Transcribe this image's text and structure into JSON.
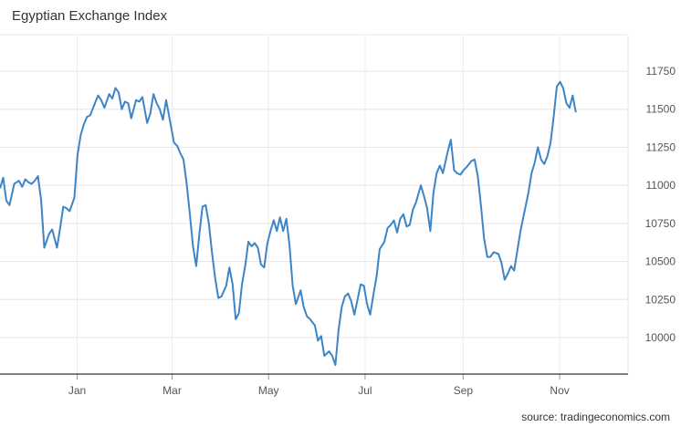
{
  "chart_data": {
    "type": "line",
    "title": "Egyptian Exchange Index",
    "source": "source: tradingeconomics.com",
    "xlabel": "",
    "ylabel": "",
    "ylim": [
      9760,
      11990
    ],
    "yticks": [
      10000,
      10250,
      10500,
      10750,
      11000,
      11250,
      11500,
      11750
    ],
    "x_ticks": [
      {
        "label": "Jan",
        "date": "2016-01-01"
      },
      {
        "label": "Mar",
        "date": "2016-03-01"
      },
      {
        "label": "May",
        "date": "2016-05-01"
      },
      {
        "label": "Jul",
        "date": "2016-07-01"
      },
      {
        "label": "Sep",
        "date": "2016-09-01"
      },
      {
        "label": "Nov",
        "date": "2016-11-01"
      }
    ],
    "xlim": [
      "2015-11-19",
      "2016-12-20"
    ],
    "grid": true,
    "line_color": "#3d85c6",
    "series": [
      {
        "name": "",
        "dates": [
          "2015-11-19",
          "2015-11-21",
          "2015-11-23",
          "2015-11-25",
          "2015-11-28",
          "2015-12-01",
          "2015-12-03",
          "2015-12-05",
          "2015-12-07",
          "2015-12-09",
          "2015-12-11",
          "2015-12-13",
          "2015-12-15",
          "2015-12-17",
          "2015-12-20",
          "2015-12-22",
          "2015-12-25",
          "2015-12-27",
          "2015-12-29",
          "2015-12-31",
          "2016-01-02",
          "2016-01-05",
          "2016-01-07",
          "2016-01-09",
          "2016-01-11",
          "2016-01-13",
          "2016-01-15",
          "2016-01-18",
          "2016-01-20",
          "2016-01-22",
          "2016-01-24",
          "2016-01-27",
          "2016-01-29",
          "2016-01-31",
          "2016-02-02",
          "2016-02-04",
          "2016-02-06",
          "2016-02-08",
          "2016-02-10",
          "2016-02-13",
          "2016-02-15",
          "2016-02-17",
          "2016-02-20",
          "2016-02-22",
          "2016-02-24",
          "2016-02-26",
          "2016-02-28",
          "2016-03-01",
          "2016-03-03",
          "2016-03-05",
          "2016-03-08",
          "2016-03-10",
          "2016-03-12",
          "2016-03-14",
          "2016-03-16",
          "2016-03-18",
          "2016-03-20",
          "2016-03-22",
          "2016-03-24",
          "2016-03-26",
          "2016-03-28",
          "2016-03-30",
          "2016-04-01",
          "2016-04-03",
          "2016-04-05",
          "2016-04-07",
          "2016-04-10",
          "2016-04-12",
          "2016-04-14",
          "2016-04-16",
          "2016-04-18",
          "2016-04-20",
          "2016-04-22",
          "2016-04-24",
          "2016-04-26",
          "2016-04-28",
          "2016-04-30",
          "2016-05-02",
          "2016-05-04",
          "2016-05-06",
          "2016-05-08",
          "2016-05-10",
          "2016-05-12",
          "2016-05-14",
          "2016-05-16",
          "2016-05-18",
          "2016-05-20",
          "2016-05-22",
          "2016-05-24",
          "2016-05-27",
          "2016-05-29",
          "2016-05-31",
          "2016-06-02",
          "2016-06-05",
          "2016-06-07",
          "2016-06-09",
          "2016-06-11",
          "2016-06-14",
          "2016-06-16",
          "2016-06-18",
          "2016-06-20",
          "2016-06-22",
          "2016-06-24",
          "2016-06-26",
          "2016-06-28",
          "2016-06-30",
          "2016-07-02",
          "2016-07-04",
          "2016-07-06",
          "2016-07-08",
          "2016-07-10",
          "2016-07-12",
          "2016-07-14",
          "2016-07-16",
          "2016-07-19",
          "2016-07-21",
          "2016-07-23",
          "2016-07-25",
          "2016-07-27",
          "2016-07-29",
          "2016-07-31",
          "2016-08-02",
          "2016-08-04",
          "2016-08-06",
          "2016-08-08",
          "2016-08-11",
          "2016-08-13",
          "2016-08-15",
          "2016-08-17",
          "2016-08-19",
          "2016-08-21",
          "2016-08-23",
          "2016-08-25",
          "2016-08-28",
          "2016-08-30",
          "2016-09-01",
          "2016-09-03",
          "2016-09-05",
          "2016-09-07",
          "2016-09-09",
          "2016-09-12",
          "2016-09-14",
          "2016-09-16",
          "2016-09-18",
          "2016-09-20",
          "2016-09-22",
          "2016-09-24",
          "2016-09-26",
          "2016-09-29",
          "2016-10-01",
          "2016-10-03",
          "2016-10-05",
          "2016-10-07",
          "2016-10-09",
          "2016-10-11",
          "2016-10-13",
          "2016-10-15",
          "2016-10-18",
          "2016-10-20",
          "2016-10-22",
          "2016-10-24",
          "2016-10-26",
          "2016-10-28",
          "2016-10-30",
          "2016-11-01",
          "2016-11-03",
          "2016-11-05",
          "2016-11-07",
          "2016-11-09",
          "2016-11-11",
          "2016-11-13",
          "2016-11-15",
          "2016-11-17"
        ],
        "values": [
          10980,
          11050,
          10900,
          10870,
          11010,
          11030,
          10990,
          11040,
          11020,
          11010,
          11030,
          11060,
          10900,
          10590,
          10680,
          10710,
          10590,
          10720,
          10860,
          10850,
          10830,
          10920,
          11200,
          11330,
          11400,
          11450,
          11460,
          11540,
          11590,
          11560,
          11510,
          11600,
          11570,
          11640,
          11610,
          11500,
          11550,
          11540,
          11440,
          11560,
          11550,
          11580,
          11410,
          11470,
          11600,
          11540,
          11500,
          11430,
          11560,
          11450,
          11280,
          11260,
          11210,
          11170,
          11010,
          10810,
          10600,
          10470,
          10680,
          10860,
          10870,
          10750,
          10560,
          10390,
          10260,
          10270,
          10340,
          10460,
          10350,
          10120,
          10160,
          10350,
          10470,
          10630,
          10600,
          10620,
          10590,
          10480,
          10460,
          10620,
          10700,
          10770,
          10700,
          10790,
          10700,
          10780,
          10610,
          10340,
          10220,
          10310,
          10200,
          10140,
          10120,
          10080,
          9980,
          10010,
          9880,
          9910,
          9880,
          9820,
          10050,
          10200,
          10270,
          10290,
          10240,
          10150,
          10250,
          10350,
          10340,
          10220,
          10150,
          10280,
          10400,
          10580,
          10630,
          10720,
          10740,
          10770,
          10690,
          10780,
          10810,
          10730,
          10740,
          10840,
          10890,
          11000,
          10930,
          10850,
          10700,
          10950,
          11080,
          11130,
          11080,
          11220,
          11300,
          11100,
          11080,
          11070,
          11100,
          11120,
          11160,
          11170,
          11060,
          10870,
          10650,
          10530,
          10530,
          10560,
          10550,
          10490,
          10380,
          10420,
          10470,
          10440,
          10570,
          10700,
          10800,
          10950,
          11080,
          11150,
          11250,
          11170,
          11140,
          11190,
          11280,
          11450,
          11650,
          11680,
          11640,
          11540,
          11510,
          11590,
          11480
        ]
      }
    ]
  }
}
